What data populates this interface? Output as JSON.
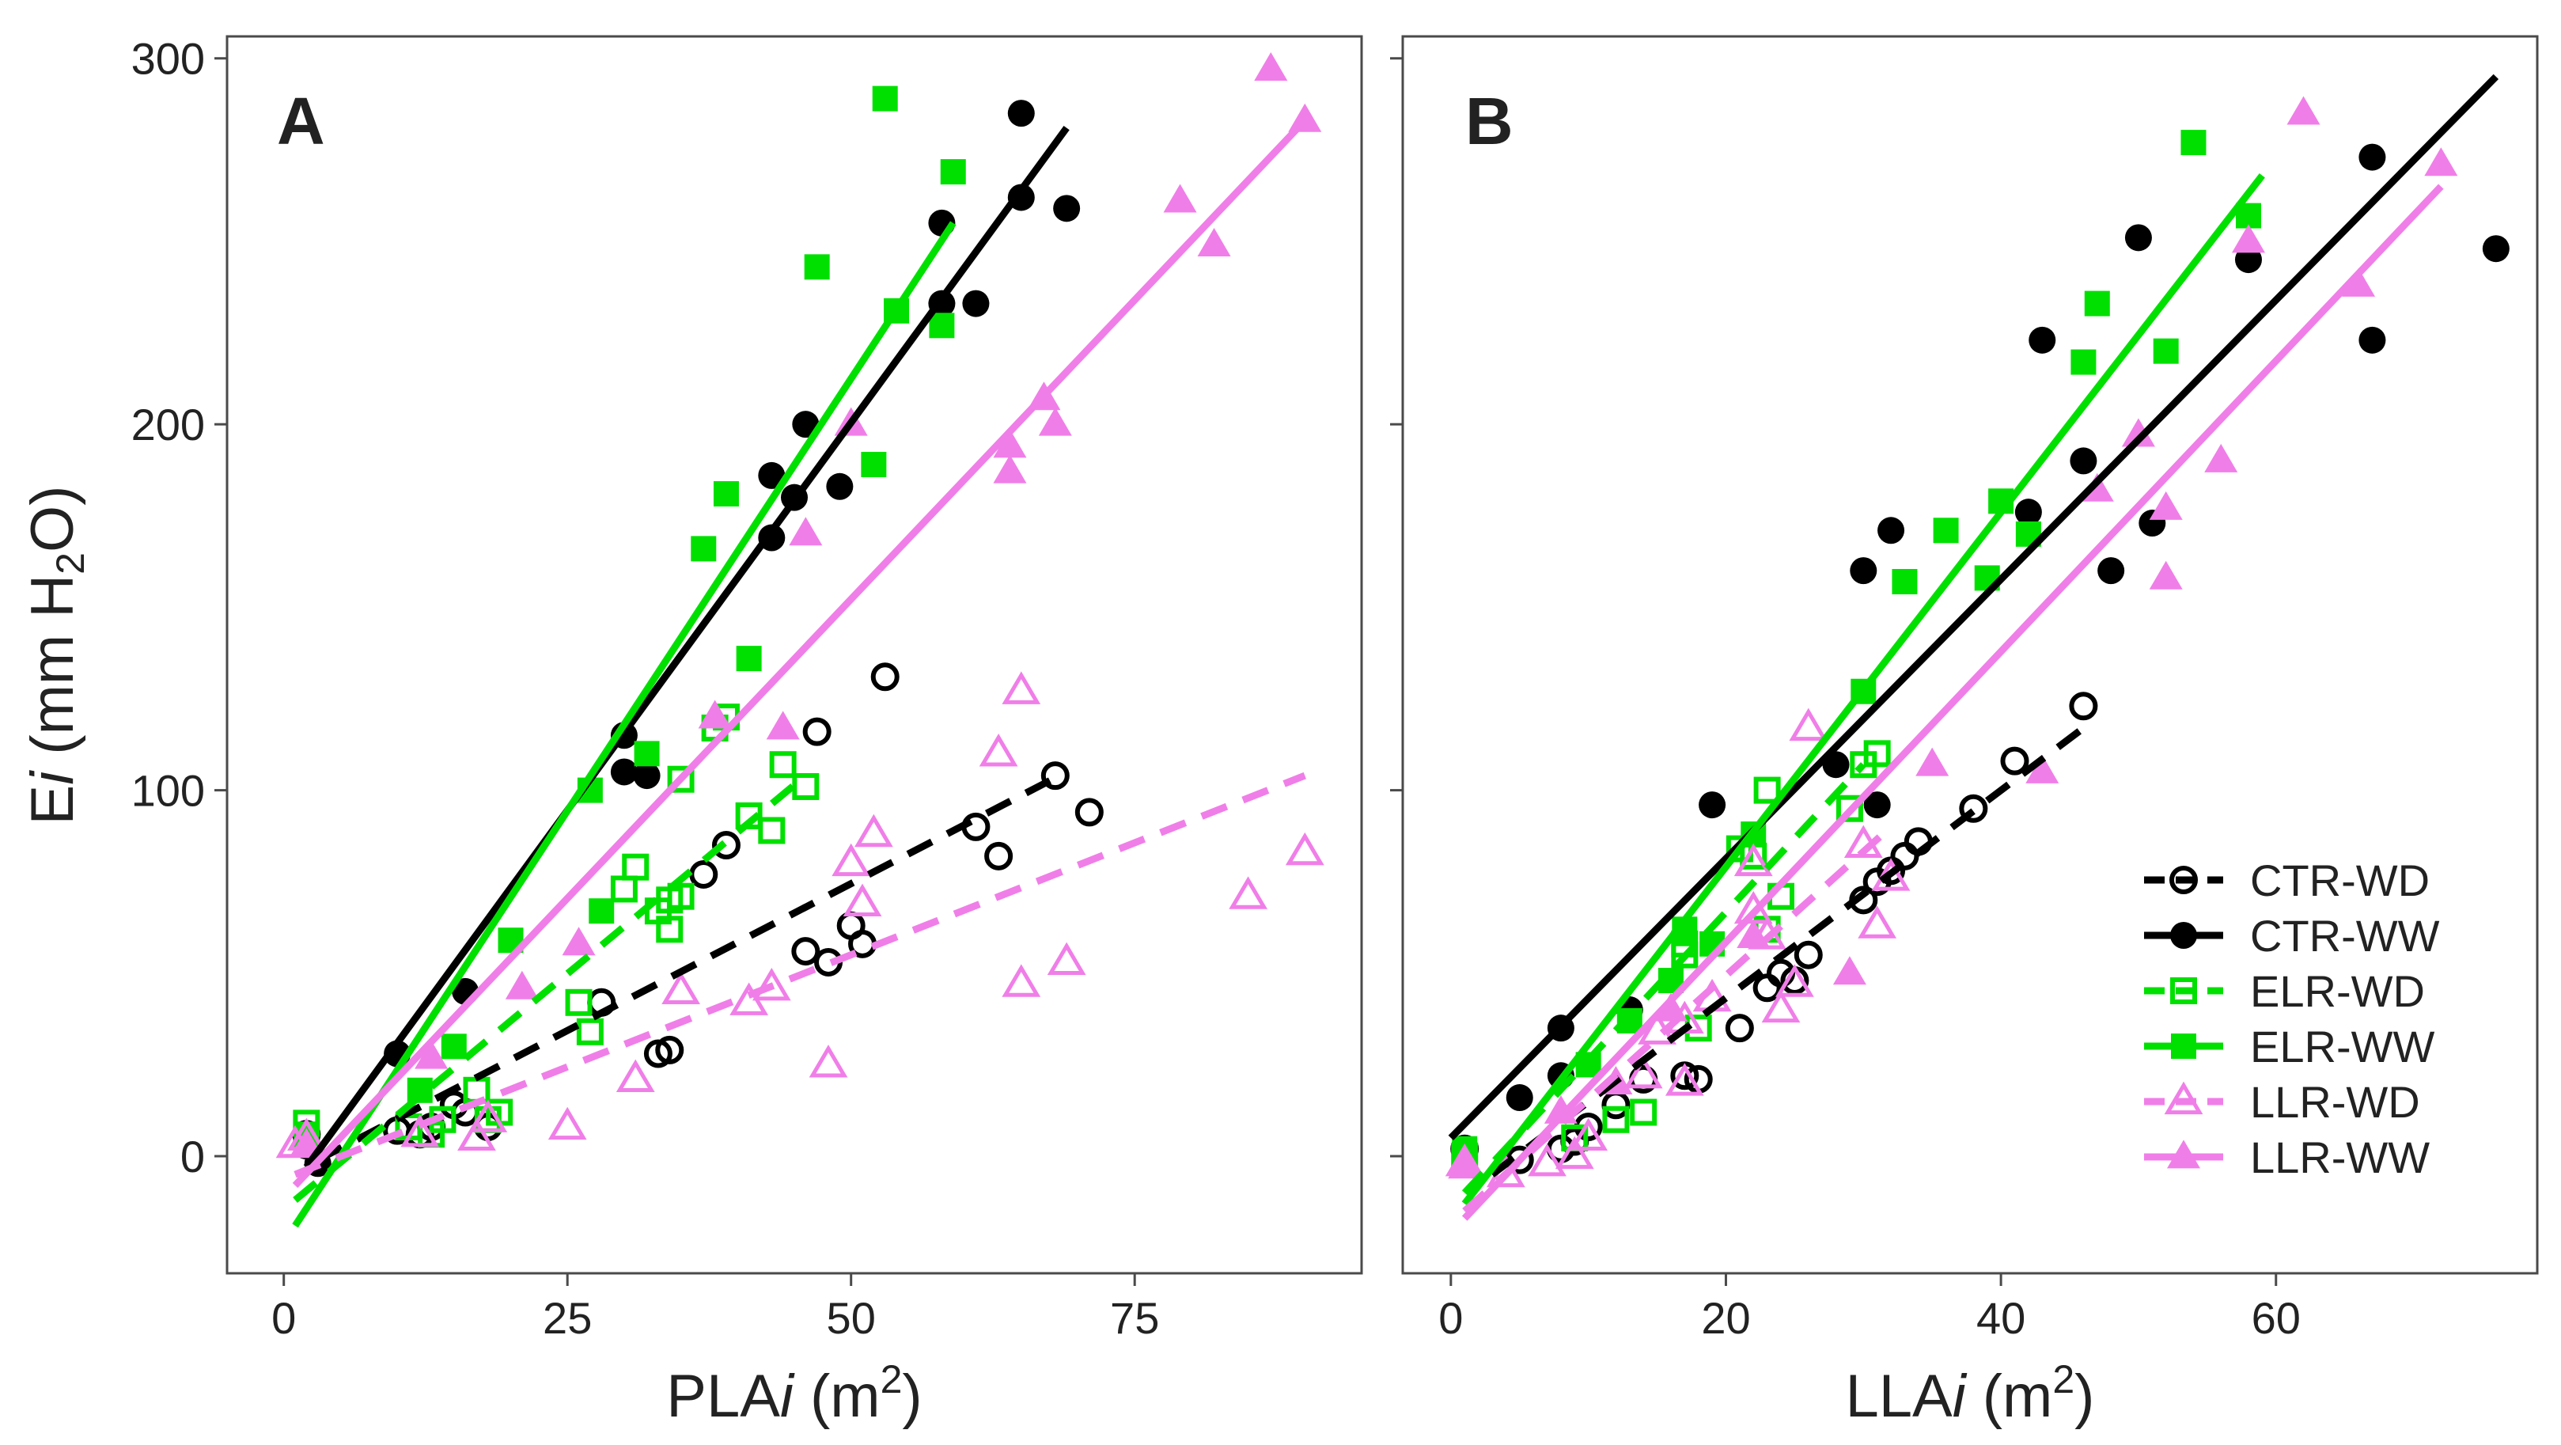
{
  "figure": {
    "y_label": {
      "main": "E",
      "italic": "i",
      "paren_open": " (mm H",
      "sub": "2",
      "rest": "O)"
    }
  },
  "legend": [
    {
      "key": "CTR-WD",
      "label": "CTR-WD",
      "color": "#000000",
      "marker": "circle-open",
      "dashed": true
    },
    {
      "key": "CTR-WW",
      "label": "CTR-WW",
      "color": "#000000",
      "marker": "circle-filled",
      "dashed": false
    },
    {
      "key": "ELR-WD",
      "label": "ELR-WD",
      "color": "#00e000",
      "marker": "square-open",
      "dashed": true
    },
    {
      "key": "ELR-WW",
      "label": "ELR-WW",
      "color": "#00e000",
      "marker": "square-filled",
      "dashed": false
    },
    {
      "key": "LLR-WD",
      "label": "LLR-WD",
      "color": "#f07ee8",
      "marker": "triangle-open",
      "dashed": true
    },
    {
      "key": "LLR-WW",
      "label": "LLR-WW",
      "color": "#f07ee8",
      "marker": "triangle-filled",
      "dashed": false
    }
  ],
  "chart_data": [
    {
      "type": "scatter",
      "panel_label": "A",
      "title": "",
      "xlabel": {
        "main": "PLA",
        "italic": "i",
        "unit_open": " (m",
        "sup": "2",
        "unit_close": ")"
      },
      "ylabel": "Ei (mm H2O)",
      "xlim": [
        -5,
        95
      ],
      "ylim": [
        -32,
        306
      ],
      "xticks": [
        0,
        25,
        50,
        75
      ],
      "yticks": [
        0,
        100,
        200,
        300
      ],
      "series": [
        {
          "name": "CTR-WD",
          "points": [
            [
              2,
              3
            ],
            [
              2,
              6
            ],
            [
              10,
              7
            ],
            [
              12,
              6
            ],
            [
              13,
              8
            ],
            [
              15,
              14
            ],
            [
              16,
              12
            ],
            [
              18,
              8
            ],
            [
              28,
              42
            ],
            [
              33,
              28
            ],
            [
              34,
              29
            ],
            [
              37,
              77
            ],
            [
              39,
              85
            ],
            [
              46,
              56
            ],
            [
              47,
              116
            ],
            [
              48,
              53
            ],
            [
              50,
              63
            ],
            [
              51,
              58
            ],
            [
              53,
              131
            ],
            [
              61,
              90
            ],
            [
              63,
              82
            ],
            [
              68,
              104
            ],
            [
              71,
              94
            ]
          ],
          "fit": [
            [
              3,
              -1
            ],
            [
              69,
              105
            ]
          ]
        },
        {
          "name": "CTR-WW",
          "points": [
            [
              2,
              5
            ],
            [
              3,
              -2
            ],
            [
              10,
              28
            ],
            [
              16,
              45
            ],
            [
              30,
              115
            ],
            [
              30,
              105
            ],
            [
              32,
              104
            ],
            [
              43,
              169
            ],
            [
              43,
              186
            ],
            [
              45,
              180
            ],
            [
              46,
              200
            ],
            [
              49,
              183
            ],
            [
              58,
              255
            ],
            [
              58,
              233
            ],
            [
              61,
              233
            ],
            [
              65,
              262
            ],
            [
              65,
              285
            ],
            [
              69,
              259
            ]
          ],
          "fit": [
            [
              2,
              -3
            ],
            [
              69,
              281
            ]
          ]
        },
        {
          "name": "ELR-WD",
          "points": [
            [
              2,
              9
            ],
            [
              11,
              8
            ],
            [
              13,
              6
            ],
            [
              14,
              10
            ],
            [
              17,
              18
            ],
            [
              18,
              10
            ],
            [
              19,
              12
            ],
            [
              26,
              42
            ],
            [
              27,
              34
            ],
            [
              30,
              73
            ],
            [
              31,
              79
            ],
            [
              33,
              67
            ],
            [
              34,
              70
            ],
            [
              34,
              62
            ],
            [
              35,
              103
            ],
            [
              35,
              71
            ],
            [
              38,
              117
            ],
            [
              39,
              120
            ],
            [
              41,
              93
            ],
            [
              43,
              89
            ],
            [
              44,
              107
            ],
            [
              46,
              101
            ]
          ],
          "fit": [
            [
              1,
              -12
            ],
            [
              46,
              104
            ]
          ]
        },
        {
          "name": "ELR-WW",
          "points": [
            [
              2,
              6
            ],
            [
              12,
              18
            ],
            [
              15,
              30
            ],
            [
              20,
              59
            ],
            [
              27,
              100
            ],
            [
              28,
              67
            ],
            [
              32,
              110
            ],
            [
              37,
              166
            ],
            [
              39,
              181
            ],
            [
              41,
              136
            ],
            [
              47,
              243
            ],
            [
              52,
              189
            ],
            [
              53,
              289
            ],
            [
              54,
              231
            ],
            [
              58,
              227
            ],
            [
              59,
              269
            ]
          ],
          "fit": [
            [
              1,
              -19
            ],
            [
              59,
              255
            ]
          ]
        },
        {
          "name": "LLR-WD",
          "points": [
            [
              1,
              3
            ],
            [
              2,
              5
            ],
            [
              12,
              6
            ],
            [
              17,
              5
            ],
            [
              18,
              10
            ],
            [
              25,
              8
            ],
            [
              31,
              21
            ],
            [
              35,
              45
            ],
            [
              41,
              42
            ],
            [
              43,
              46
            ],
            [
              48,
              25
            ],
            [
              50,
              80
            ],
            [
              51,
              69
            ],
            [
              52,
              88
            ],
            [
              63,
              110
            ],
            [
              65,
              47
            ],
            [
              65,
              127
            ],
            [
              69,
              53
            ],
            [
              85,
              71
            ],
            [
              90,
              83
            ]
          ],
          "fit": [
            [
              1,
              -5
            ],
            [
              90,
              104
            ]
          ]
        },
        {
          "name": "LLR-WW",
          "points": [
            [
              2,
              3
            ],
            [
              13,
              27
            ],
            [
              21,
              46
            ],
            [
              26,
              58
            ],
            [
              38,
              120
            ],
            [
              44,
              117
            ],
            [
              46,
              170
            ],
            [
              50,
              200
            ],
            [
              64,
              194
            ],
            [
              64,
              187
            ],
            [
              67,
              207
            ],
            [
              68,
              200
            ],
            [
              79,
              261
            ],
            [
              82,
              249
            ],
            [
              87,
              297
            ],
            [
              90,
              283
            ]
          ],
          "fit": [
            [
              1,
              -8
            ],
            [
              90,
              283
            ]
          ]
        }
      ]
    },
    {
      "type": "scatter",
      "panel_label": "B",
      "title": "",
      "xlabel": {
        "main": "LLA",
        "italic": "i",
        "unit_open": " (m",
        "sup": "2",
        "unit_close": ")"
      },
      "ylabel": "Ei (mm H2O)",
      "xlim": [
        -3.5,
        79
      ],
      "ylim": [
        -32,
        306
      ],
      "xticks": [
        0,
        20,
        40,
        60
      ],
      "yticks": [
        0,
        100,
        200,
        300
      ],
      "series": [
        {
          "name": "CTR-WD",
          "points": [
            [
              1,
              2
            ],
            [
              5,
              -1
            ],
            [
              8,
              2
            ],
            [
              9,
              4
            ],
            [
              10,
              8
            ],
            [
              12,
              14
            ],
            [
              14,
              21
            ],
            [
              17,
              22
            ],
            [
              18,
              21
            ],
            [
              21,
              35
            ],
            [
              23,
              46
            ],
            [
              24,
              50
            ],
            [
              25,
              48
            ],
            [
              26,
              55
            ],
            [
              30,
              70
            ],
            [
              31,
              75
            ],
            [
              32,
              78
            ],
            [
              33,
              82
            ],
            [
              34,
              86
            ],
            [
              38,
              95
            ],
            [
              41,
              108
            ],
            [
              46,
              123
            ]
          ],
          "fit": [
            [
              3,
              -5
            ],
            [
              46,
              117
            ]
          ]
        },
        {
          "name": "CTR-WW",
          "points": [
            [
              1,
              2
            ],
            [
              5,
              16
            ],
            [
              8,
              35
            ],
            [
              8,
              22
            ],
            [
              13,
              40
            ],
            [
              19,
              96
            ],
            [
              28,
              107
            ],
            [
              30,
              160
            ],
            [
              31,
              96
            ],
            [
              32,
              171
            ],
            [
              42,
              176
            ],
            [
              43,
              223
            ],
            [
              46,
              190
            ],
            [
              48,
              160
            ],
            [
              50,
              251
            ],
            [
              51,
              173
            ],
            [
              58,
              245
            ],
            [
              67,
              273
            ],
            [
              67,
              223
            ],
            [
              76,
              248
            ]
          ],
          "fit": [
            [
              0,
              5
            ],
            [
              76,
              295
            ]
          ]
        },
        {
          "name": "ELR-WD",
          "points": [
            [
              1,
              0
            ],
            [
              9,
              5
            ],
            [
              12,
              10
            ],
            [
              14,
              12
            ],
            [
              17,
              55
            ],
            [
              17,
              58
            ],
            [
              18,
              35
            ],
            [
              21,
              84
            ],
            [
              22,
              82
            ],
            [
              23,
              100
            ],
            [
              23,
              62
            ],
            [
              24,
              71
            ],
            [
              29,
              95
            ],
            [
              30,
              107
            ],
            [
              31,
              110
            ]
          ],
          "fit": [
            [
              1,
              -10
            ],
            [
              30,
              107
            ]
          ]
        },
        {
          "name": "ELR-WW",
          "points": [
            [
              1,
              2
            ],
            [
              10,
              25
            ],
            [
              13,
              37
            ],
            [
              16,
              48
            ],
            [
              17,
              62
            ],
            [
              19,
              58
            ],
            [
              22,
              88
            ],
            [
              30,
              127
            ],
            [
              33,
              157
            ],
            [
              36,
              171
            ],
            [
              39,
              158
            ],
            [
              40,
              179
            ],
            [
              42,
              170
            ],
            [
              46,
              217
            ],
            [
              47,
              233
            ],
            [
              52,
              220
            ],
            [
              54,
              277
            ],
            [
              58,
              257
            ]
          ],
          "fit": [
            [
              1,
              -13
            ],
            [
              59,
              268
            ]
          ]
        },
        {
          "name": "LLR-WD",
          "points": [
            [
              1,
              -2
            ],
            [
              4,
              -5
            ],
            [
              7,
              -2
            ],
            [
              9,
              0
            ],
            [
              10,
              5
            ],
            [
              14,
              22
            ],
            [
              15,
              34
            ],
            [
              17,
              37
            ],
            [
              17,
              20
            ],
            [
              19,
              43
            ],
            [
              22,
              67
            ],
            [
              22,
              80
            ],
            [
              23,
              60
            ],
            [
              24,
              40
            ],
            [
              25,
              47
            ],
            [
              26,
              117
            ],
            [
              30,
              85
            ],
            [
              31,
              63
            ],
            [
              32,
              76
            ]
          ],
          "fit": [
            [
              1,
              -15
            ],
            [
              32,
              90
            ]
          ]
        },
        {
          "name": "LLR-WW",
          "points": [
            [
              1,
              -3
            ],
            [
              8,
              12
            ],
            [
              12,
              20
            ],
            [
              16,
              40
            ],
            [
              22,
              60
            ],
            [
              29,
              50
            ],
            [
              35,
              107
            ],
            [
              43,
              105
            ],
            [
              47,
              182
            ],
            [
              50,
              197
            ],
            [
              52,
              177
            ],
            [
              52,
              158
            ],
            [
              56,
              190
            ],
            [
              58,
              250
            ],
            [
              62,
              285
            ],
            [
              66,
              238
            ],
            [
              72,
              271
            ]
          ],
          "fit": [
            [
              1,
              -17
            ],
            [
              72,
              265
            ]
          ]
        }
      ]
    }
  ]
}
